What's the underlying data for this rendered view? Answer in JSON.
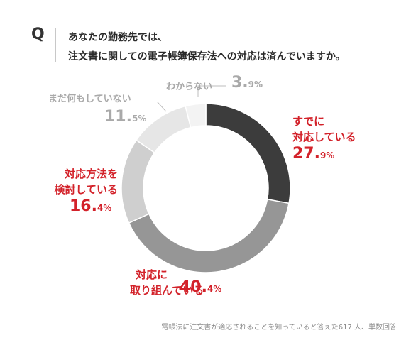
{
  "question": {
    "mark": "Q",
    "line1": "あなたの勤務先では、",
    "line2": "注文書に関しての電子帳簿保存法への対応は済んでいますか。"
  },
  "chart_data": {
    "type": "pie",
    "title": "",
    "slices": [
      {
        "label_lines": [
          "すでに",
          "対応している"
        ],
        "num": "27.",
        "dec": "9%",
        "value": 27.9,
        "color": "#3c3c3c",
        "label_color": "#d3222a"
      },
      {
        "label_lines": [
          "対応に",
          "取り組んでいる"
        ],
        "num": "40.",
        "dec": "4%",
        "value": 40.4,
        "color": "#969696",
        "label_color": "#d3222a"
      },
      {
        "label_lines": [
          "対応方法を",
          "検討している"
        ],
        "num": "16.",
        "dec": "4%",
        "value": 16.4,
        "color": "#cfcfcf",
        "label_color": "#d3222a"
      },
      {
        "label_lines": [
          "まだ何もしていない"
        ],
        "num": "11.",
        "dec": "5%",
        "value": 11.5,
        "color": "#e6e6e6",
        "label_color": "#a9a9a9"
      },
      {
        "label_lines": [
          "わからない"
        ],
        "num": "3.",
        "dec": "9%",
        "value": 3.9,
        "color": "#f3f3f3",
        "label_color": "#a9a9a9"
      }
    ]
  },
  "footnote": "電帳法に注文書が適応されることを知っていると答えた617 人、単数回答"
}
